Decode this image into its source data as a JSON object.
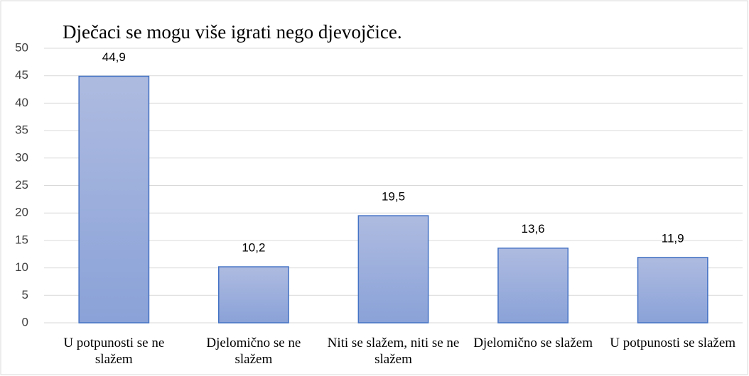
{
  "chart_data": {
    "type": "bar",
    "title": "Dječaci se mogu više igrati nego djevojčice.",
    "categories": [
      "U potpunosti se ne slažem",
      "Djelomično se ne slažem",
      "Niti se slažem, niti se ne slažem",
      "Djelomično se slažem",
      "U potpunosti se slažem"
    ],
    "values": [
      44.9,
      10.2,
      19.5,
      13.6,
      11.9
    ],
    "value_labels": [
      "44,9",
      "10,2",
      "19,5",
      "13,6",
      "11,9"
    ],
    "color": "#4472c4",
    "ylim": [
      0,
      50
    ],
    "yticks": [
      0,
      5,
      10,
      15,
      20,
      25,
      30,
      35,
      40,
      45,
      50
    ],
    "grid": true
  }
}
